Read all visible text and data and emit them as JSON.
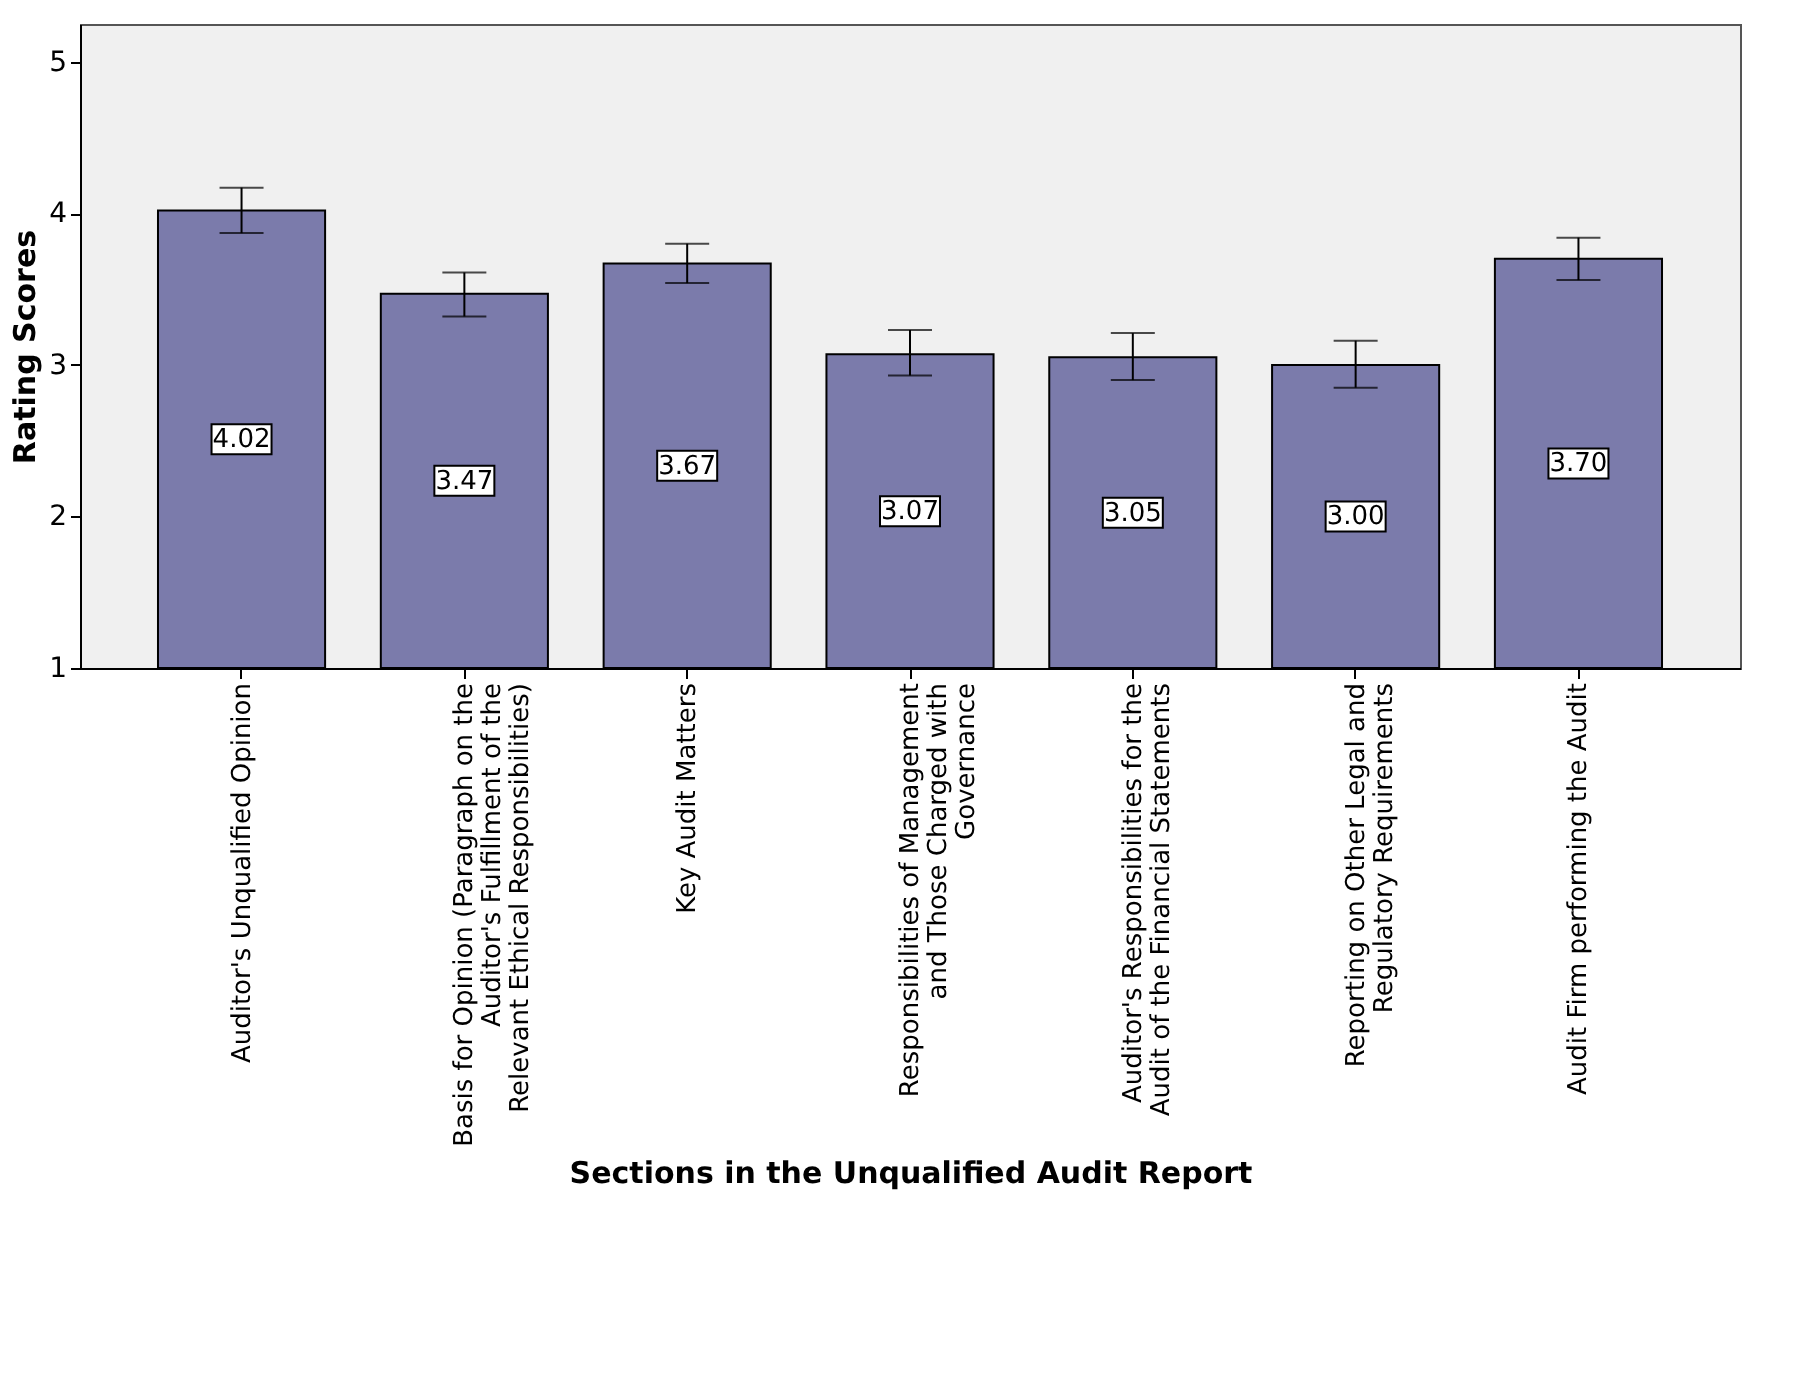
{
  "chart_data": {
    "type": "bar",
    "xlabel": "Sections in the Unqualified Audit Report",
    "ylabel": "Rating Scores",
    "categories": [
      "Auditor's Unqualified Opinion",
      "Basis for Opinion (Paragraph on the\nAuditor's Fulfillment of the\nRelevant Ethical Responsibilities)",
      "Key Audit Matters",
      "Responsibilities of Management\nand Those Charged with\nGovernance",
      "Auditor's Responsibilities for the\nAudit of the Financial Statements",
      "Reporting on Other Legal and\nRegulatory Requirements",
      "Audit Firm performing the Audit"
    ],
    "values": [
      4.02,
      3.47,
      3.67,
      3.07,
      3.05,
      3.0,
      3.7
    ],
    "errors": [
      [
        3.87,
        4.17
      ],
      [
        3.32,
        3.61
      ],
      [
        3.54,
        3.8
      ],
      [
        2.93,
        3.23
      ],
      [
        2.9,
        3.21
      ],
      [
        2.85,
        3.16
      ],
      [
        3.56,
        3.84
      ]
    ],
    "value_labels": [
      "4.02",
      "3.47",
      "3.67",
      "3.07",
      "3.05",
      "3.00",
      "3.70"
    ],
    "color": "#7b7bab",
    "ylim": [
      1,
      5.25
    ],
    "yticks": [
      1,
      2,
      3,
      4,
      5
    ],
    "grid": false
  }
}
